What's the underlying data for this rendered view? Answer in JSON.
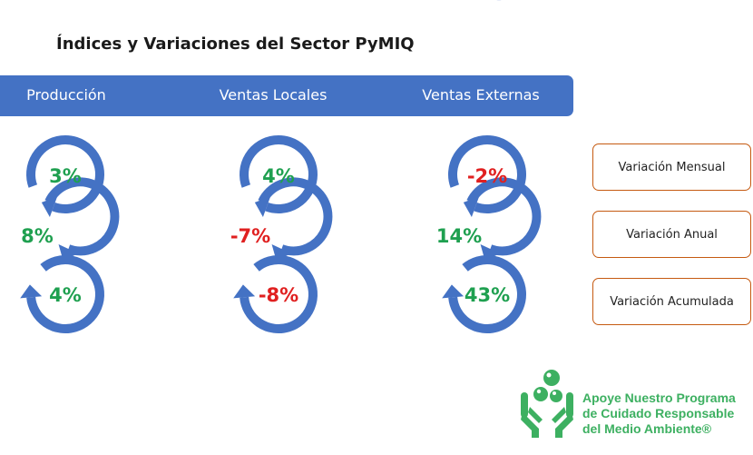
{
  "title": "Índices y Variaciones del Sector PyMIQ",
  "colors": {
    "header": "#4472C4",
    "arrow": "#4472C4",
    "positive": "#1FA050",
    "negative": "#E02020",
    "legend_border": "#C55A11",
    "logo": "#3DB061"
  },
  "columns": [
    {
      "label": "Producción",
      "values": [
        {
          "text": "3%",
          "sign": "positive"
        },
        {
          "text": "8%",
          "sign": "positive"
        },
        {
          "text": "4%",
          "sign": "positive"
        }
      ]
    },
    {
      "label": "Ventas Locales",
      "values": [
        {
          "text": "4%",
          "sign": "positive"
        },
        {
          "text": "-7%",
          "sign": "negative"
        },
        {
          "text": "-8%",
          "sign": "negative"
        }
      ]
    },
    {
      "label": "Ventas Externas",
      "values": [
        {
          "text": "-2%",
          "sign": "negative"
        },
        {
          "text": "14%",
          "sign": "positive"
        },
        {
          "text": "43%",
          "sign": "positive"
        }
      ]
    }
  ],
  "legend": [
    "Variación Mensual",
    "Variación Anual",
    "Variación Acumulada"
  ],
  "logo": {
    "lines": [
      "Apoye Nuestro Programa",
      "de Cuidado Responsable",
      "del Medio Ambiente®"
    ],
    "icon": "hands-with-molecules-icon"
  }
}
